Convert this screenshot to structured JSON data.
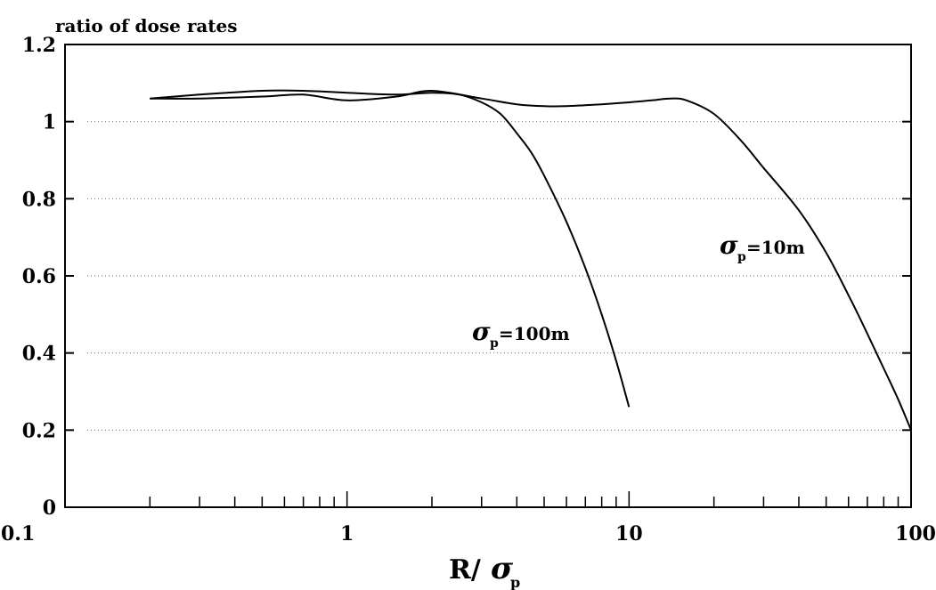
{
  "chart_data": {
    "type": "line",
    "title": "",
    "ylabel": "ratio of dose rates",
    "xlabel": {
      "base": "R/",
      "symbol": "σ",
      "subscript": "p"
    },
    "x_scale": "log",
    "xlim": [
      0.1,
      100
    ],
    "ylim": [
      0,
      1.2
    ],
    "x_ticks": [
      {
        "value": 0.1,
        "label": "0.1"
      },
      {
        "value": 1,
        "label": "1"
      },
      {
        "value": 10,
        "label": "10"
      },
      {
        "value": 100,
        "label": "100"
      }
    ],
    "y_ticks": [
      {
        "value": 0,
        "label": "0"
      },
      {
        "value": 0.2,
        "label": "0.2"
      },
      {
        "value": 0.4,
        "label": "0.4"
      },
      {
        "value": 0.6,
        "label": "0.6"
      },
      {
        "value": 0.8,
        "label": "0.8"
      },
      {
        "value": 1.0,
        "label": "1"
      },
      {
        "value": 1.2,
        "label": "1.2"
      }
    ],
    "grid": "dotted horizontal",
    "legend": "none",
    "series": [
      {
        "id": "sigma_p_10m",
        "x": [
          0.2,
          0.3,
          0.5,
          0.7,
          1.0,
          1.5,
          2.0,
          3.0,
          4.0,
          5.0,
          6.0,
          8.0,
          10.0,
          12.0,
          14.0,
          16.0,
          20.0,
          25.0,
          30.0,
          40.0,
          50.0,
          60.0,
          70.0,
          80.0,
          90.0,
          100.0
        ],
        "y": [
          1.06,
          1.06,
          1.065,
          1.07,
          1.055,
          1.065,
          1.08,
          1.06,
          1.045,
          1.04,
          1.04,
          1.045,
          1.05,
          1.055,
          1.06,
          1.055,
          1.02,
          0.95,
          0.88,
          0.77,
          0.66,
          0.55,
          0.45,
          0.36,
          0.28,
          0.2
        ],
        "label": {
          "symbol": "σ",
          "subscript": "p",
          "text": "=10m"
        }
      },
      {
        "id": "sigma_p_100m",
        "x": [
          0.2,
          0.3,
          0.5,
          0.7,
          1.0,
          1.5,
          2.0,
          2.5,
          3.0,
          3.5,
          4.0,
          4.5,
          5.0,
          6.0,
          7.0,
          8.0,
          9.0,
          10.0
        ],
        "y": [
          1.06,
          1.07,
          1.08,
          1.08,
          1.075,
          1.07,
          1.075,
          1.07,
          1.05,
          1.02,
          0.97,
          0.92,
          0.86,
          0.74,
          0.62,
          0.5,
          0.38,
          0.26
        ],
        "label": {
          "symbol": "σ",
          "subscript": "p",
          "text": "=100m"
        }
      }
    ]
  }
}
